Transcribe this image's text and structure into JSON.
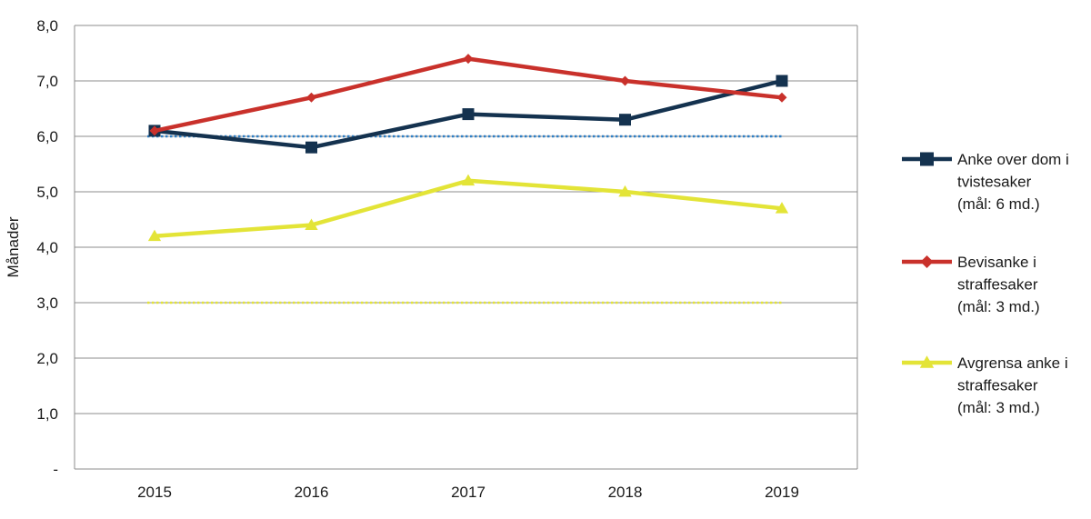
{
  "chart_data": {
    "type": "line",
    "ylabel": "Månader",
    "xlabel": "",
    "categories": [
      "2015",
      "2016",
      "2017",
      "2018",
      "2019"
    ],
    "ylim": [
      0,
      8
    ],
    "yticks": [
      {
        "value": 0,
        "label": "-"
      },
      {
        "value": 1,
        "label": "1,0"
      },
      {
        "value": 2,
        "label": "2,0"
      },
      {
        "value": 3,
        "label": "3,0"
      },
      {
        "value": 4,
        "label": "4,0"
      },
      {
        "value": 5,
        "label": "5,0"
      },
      {
        "value": 6,
        "label": "6,0"
      },
      {
        "value": 7,
        "label": "7,0"
      },
      {
        "value": 8,
        "label": "8,0"
      }
    ],
    "grid": true,
    "legend_position": "right",
    "series": [
      {
        "name": "Anke over dom i tvistesaker (mål: 6 md.)",
        "legend_lines": [
          "Anke over dom i",
          "tvistesaker",
          "(mål: 6 md.)"
        ],
        "values": [
          6.1,
          5.8,
          6.4,
          6.3,
          7.0
        ],
        "color": "#14324f",
        "marker": "square"
      },
      {
        "name": "Bevisanke i straffesaker (mål: 3 md.)",
        "legend_lines": [
          "Bevisanke i",
          "straffesaker",
          "(mål: 3 md.)"
        ],
        "values": [
          6.1,
          6.7,
          7.4,
          7.0,
          6.7
        ],
        "color": "#c9312b",
        "marker": "diamond"
      },
      {
        "name": "Avgrensa anke i straffesaker (mål: 3 md.)",
        "legend_lines": [
          "Avgrensa anke i",
          "straffesaker",
          "(mål: 3 md.)"
        ],
        "values": [
          4.2,
          4.4,
          5.2,
          5.0,
          4.7
        ],
        "color": "#e3e437",
        "marker": "triangle"
      }
    ],
    "target_lines": [
      {
        "value": 6.0,
        "color": "#2f7fc4"
      },
      {
        "value": 3.0,
        "color": "#e3e437"
      }
    ]
  }
}
